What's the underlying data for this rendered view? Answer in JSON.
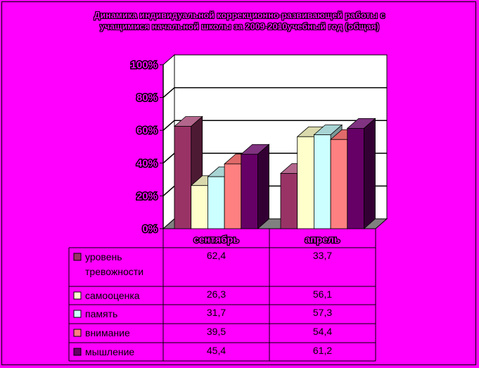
{
  "chart_data": {
    "type": "bar",
    "title": [
      "Динамика индивидуальной коррекционно-развивающей работы с",
      "учащимися начальной школы за 2009-2010учебный год (общая)"
    ],
    "categories": [
      "сентябрь",
      "апрель"
    ],
    "ylim": [
      0,
      100
    ],
    "yticks": [
      "0%",
      "20%",
      "40%",
      "60%",
      "80%",
      "100%"
    ],
    "yticks_values": [
      0,
      20,
      40,
      60,
      80,
      100
    ],
    "grid": true,
    "legend": "data-table",
    "series": [
      {
        "name": "уровень тревожности",
        "name_lines": [
          "уровень",
          "тревожности"
        ],
        "values": [
          62.4,
          33.7
        ],
        "labels": [
          "62,4",
          "33,7"
        ],
        "color": "#993366",
        "side": "#4d1a33",
        "top": "#b3668c"
      },
      {
        "name": "самооценка",
        "name_lines": [
          "самооценка"
        ],
        "values": [
          26.3,
          56.1
        ],
        "labels": [
          "26,3",
          "56,1"
        ],
        "color": "#ffffcc",
        "side": "#99997a",
        "top": "#d9d9ad"
      },
      {
        "name": "память",
        "name_lines": [
          "память"
        ],
        "values": [
          31.7,
          57.3
        ],
        "labels": [
          "31,7",
          "57,3"
        ],
        "color": "#ccffff",
        "side": "#7a9999",
        "top": "#a8d4d4"
      },
      {
        "name": "внимание",
        "name_lines": [
          "внимание"
        ],
        "values": [
          39.5,
          54.4
        ],
        "labels": [
          "39,5",
          "54,4"
        ],
        "color": "#ff8080",
        "side": "#994d4d",
        "top": "#e06a6a"
      },
      {
        "name": "мышление",
        "name_lines": [
          "мышление"
        ],
        "values": [
          45.4,
          61.2
        ],
        "labels": [
          "45,4",
          "61,2"
        ],
        "color": "#660066",
        "side": "#330033",
        "top": "#803380"
      }
    ]
  }
}
